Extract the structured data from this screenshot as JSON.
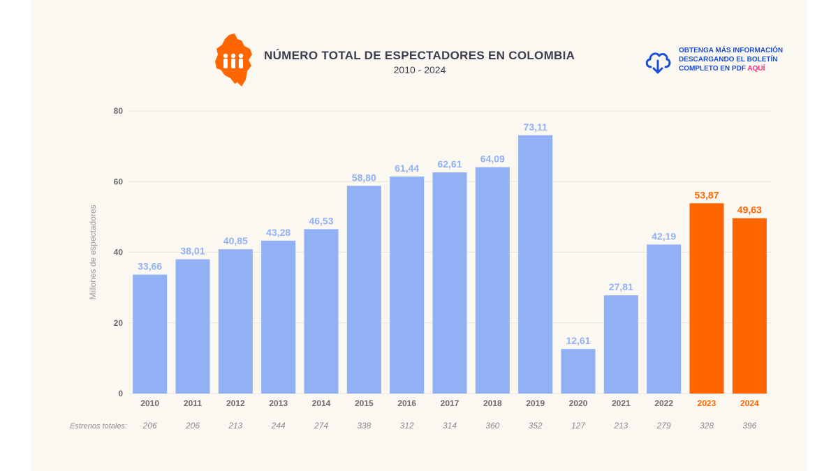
{
  "header": {
    "title": "NÚMERO TOTAL DE ESPECTADORES EN COLOMBIA",
    "subtitle": "2010 - 2024",
    "logo_icon": "colombia-map-people-icon"
  },
  "cta": {
    "line1": "OBTENGA MÁS INFORMACIÓN",
    "line2": "DESCARGANDO EL BOLETÍN",
    "line3_prefix": "COMPLETO EN PDF ",
    "link": "AQUÍ",
    "icon": "cloud-download-icon"
  },
  "colors": {
    "bar": "#92b1f5",
    "bar_highlight": "#ff6600",
    "label": "#92b1f5",
    "label_highlight": "#ff6600",
    "axis_text": "#6b6b6b",
    "grid": "#e6e3dc",
    "background": "#fbf8f1",
    "cta_text": "#1a4fd6",
    "cta_link": "#ff2a7a"
  },
  "chart_data": {
    "type": "bar",
    "title": "NÚMERO TOTAL DE ESPECTADORES EN COLOMBIA",
    "subtitle": "2010 - 2024",
    "ylabel": "Millones de espectadores",
    "xlabel": "",
    "ylim": [
      0,
      80
    ],
    "yticks": [
      0,
      20,
      40,
      60,
      80
    ],
    "grid": true,
    "categories": [
      "2010",
      "2011",
      "2012",
      "2013",
      "2014",
      "2015",
      "2016",
      "2017",
      "2018",
      "2019",
      "2020",
      "2021",
      "2022",
      "2023",
      "2024"
    ],
    "values": [
      33.66,
      38.01,
      40.85,
      43.28,
      46.53,
      58.8,
      61.44,
      62.61,
      64.09,
      73.11,
      12.61,
      27.81,
      42.19,
      53.87,
      49.63
    ],
    "value_labels": [
      "33,66",
      "38,01",
      "40,85",
      "43,28",
      "46,53",
      "58,80",
      "61,44",
      "62,61",
      "64,09",
      "73,11",
      "12,61",
      "27,81",
      "42,19",
      "53,87",
      "49,63"
    ],
    "highlighted": [
      "2023",
      "2024"
    ],
    "secondary_row": {
      "label": "Estrenos totales:",
      "values": [
        "206",
        "206",
        "213",
        "244",
        "274",
        "338",
        "312",
        "314",
        "360",
        "352",
        "127",
        "213",
        "279",
        "328",
        "396"
      ]
    }
  }
}
